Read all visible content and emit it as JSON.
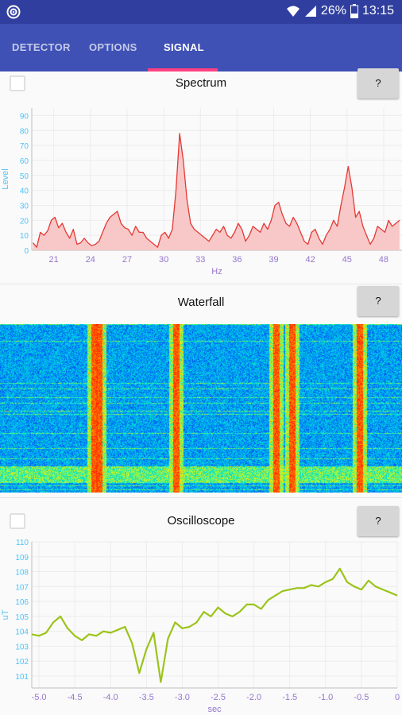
{
  "status_bar": {
    "battery_percent": "26%",
    "time": "13:15",
    "icons": [
      "app-icon",
      "wifi-icon",
      "signal-icon",
      "battery-icon"
    ]
  },
  "tabs": [
    {
      "label": "DETECTOR",
      "active": false
    },
    {
      "label": "OPTIONS",
      "active": false
    },
    {
      "label": "SIGNAL",
      "active": true
    }
  ],
  "colors": {
    "accent": "#ff4081",
    "tab_bar": "#3f51b5",
    "status_bar": "#303f9f",
    "spectrum_line": "#e53935",
    "spectrum_fill": "#f8c8c8",
    "oscilloscope_line": "#9bc41b",
    "axis_text": "#9575cd"
  },
  "spectrum": {
    "title": "Spectrum",
    "help_label": "?",
    "checkbox_checked": false
  },
  "waterfall": {
    "title": "Waterfall",
    "help_label": "?"
  },
  "oscilloscope": {
    "title": "Oscilloscope",
    "help_label": "?",
    "checkbox_checked": false
  },
  "chart_data": [
    {
      "type": "area",
      "title": "Spectrum",
      "xlabel": "Hz",
      "ylabel": "Level",
      "xlim": [
        19.2,
        49.5
      ],
      "ylim": [
        0,
        95
      ],
      "x_ticks": [
        21,
        24,
        27,
        30,
        33,
        36,
        39,
        42,
        45,
        48
      ],
      "y_ticks": [
        0,
        10,
        20,
        30,
        40,
        50,
        60,
        70,
        80,
        90
      ],
      "grid": true,
      "series": [
        {
          "x": [
            19.3,
            19.6,
            19.9,
            20.2,
            20.5,
            20.8,
            21.1,
            21.4,
            21.7,
            22.0,
            22.3,
            22.6,
            22.9,
            23.2,
            23.5,
            23.8,
            24.1,
            24.4,
            24.7,
            25.0,
            25.3,
            25.6,
            25.9,
            26.2,
            26.5,
            26.8,
            27.1,
            27.4,
            27.7,
            28.0,
            28.3,
            28.6,
            28.9,
            29.2,
            29.5,
            29.8,
            30.1,
            30.4,
            30.7,
            31.0,
            31.3,
            31.6,
            31.9,
            32.2,
            32.5,
            32.8,
            33.1,
            33.4,
            33.7,
            34.0,
            34.3,
            34.6,
            34.9,
            35.2,
            35.5,
            35.8,
            36.1,
            36.4,
            36.7,
            37.0,
            37.3,
            37.6,
            37.9,
            38.2,
            38.5,
            38.8,
            39.1,
            39.4,
            39.7,
            40.0,
            40.3,
            40.6,
            40.9,
            41.2,
            41.5,
            41.8,
            42.1,
            42.4,
            42.7,
            43.0,
            43.3,
            43.6,
            43.9,
            44.2,
            44.5,
            44.8,
            45.1,
            45.4,
            45.7,
            46.0,
            46.3,
            46.6,
            46.9,
            47.2,
            47.5,
            47.8,
            48.1,
            48.4,
            48.7,
            49.0,
            49.3
          ],
          "values": [
            5,
            2,
            12,
            10,
            13,
            20,
            22,
            15,
            18,
            12,
            8,
            14,
            4,
            5,
            8,
            5,
            3,
            4,
            6,
            12,
            18,
            22,
            24,
            26,
            18,
            15,
            14,
            10,
            16,
            12,
            12,
            8,
            6,
            4,
            2,
            10,
            12,
            8,
            14,
            40,
            78,
            60,
            34,
            18,
            14,
            12,
            10,
            8,
            6,
            10,
            14,
            12,
            16,
            10,
            8,
            12,
            18,
            14,
            6,
            10,
            16,
            14,
            12,
            18,
            14,
            20,
            30,
            32,
            24,
            18,
            16,
            22,
            18,
            12,
            6,
            4,
            12,
            14,
            8,
            4,
            10,
            14,
            20,
            16,
            30,
            42,
            56,
            42,
            22,
            26,
            16,
            10,
            4,
            8,
            16,
            14,
            12,
            20,
            16,
            18,
            20
          ]
        }
      ]
    },
    {
      "type": "heatmap",
      "title": "Waterfall",
      "description_of_hot_bands_hz": [
        24.3,
        24.7,
        31.0,
        39.2,
        40.5,
        46.0
      ]
    },
    {
      "type": "line",
      "title": "Oscilloscope",
      "xlabel": "sec",
      "ylabel": "uT",
      "xlim": [
        -5.1,
        0.0
      ],
      "ylim": [
        100.2,
        110.0
      ],
      "x_ticks": [
        -5.0,
        -4.5,
        -4.0,
        -3.5,
        -3.0,
        -2.5,
        -2.0,
        -1.5,
        -1.0,
        -0.5,
        0
      ],
      "x_tick_labels": [
        "-5.0",
        "-4.5",
        "-4.0",
        "-3.5",
        "-3.0",
        "-2.5",
        "-2.0",
        "-1.5",
        "-1.0",
        "-0.5",
        "0"
      ],
      "y_ticks": [
        101,
        102,
        103,
        104,
        105,
        106,
        107,
        108,
        109,
        110
      ],
      "grid": true,
      "series": [
        {
          "x": [
            -5.1,
            -5.0,
            -4.9,
            -4.8,
            -4.7,
            -4.6,
            -4.5,
            -4.4,
            -4.3,
            -4.2,
            -4.1,
            -4.0,
            -3.9,
            -3.8,
            -3.7,
            -3.6,
            -3.5,
            -3.4,
            -3.3,
            -3.2,
            -3.1,
            -3.0,
            -2.9,
            -2.8,
            -2.7,
            -2.6,
            -2.5,
            -2.4,
            -2.3,
            -2.2,
            -2.1,
            -2.0,
            -1.9,
            -1.8,
            -1.7,
            -1.6,
            -1.5,
            -1.4,
            -1.3,
            -1.2,
            -1.1,
            -1.0,
            -0.9,
            -0.8,
            -0.7,
            -0.6,
            -0.5,
            -0.4,
            -0.3,
            -0.2,
            -0.1,
            0.0
          ],
          "values": [
            103.8,
            103.7,
            103.9,
            104.6,
            105.0,
            104.2,
            103.7,
            103.4,
            103.8,
            103.7,
            104.0,
            103.9,
            104.1,
            104.3,
            103.2,
            101.2,
            102.8,
            103.9,
            100.6,
            103.5,
            104.6,
            104.2,
            104.3,
            104.6,
            105.3,
            105.0,
            105.6,
            105.2,
            105.0,
            105.3,
            105.8,
            105.8,
            105.5,
            106.1,
            106.4,
            106.7,
            106.8,
            106.9,
            106.9,
            107.1,
            107.0,
            107.3,
            107.5,
            108.2,
            107.3,
            107.0,
            106.8,
            107.4,
            107.0,
            106.8,
            106.6,
            106.4
          ]
        }
      ]
    }
  ]
}
